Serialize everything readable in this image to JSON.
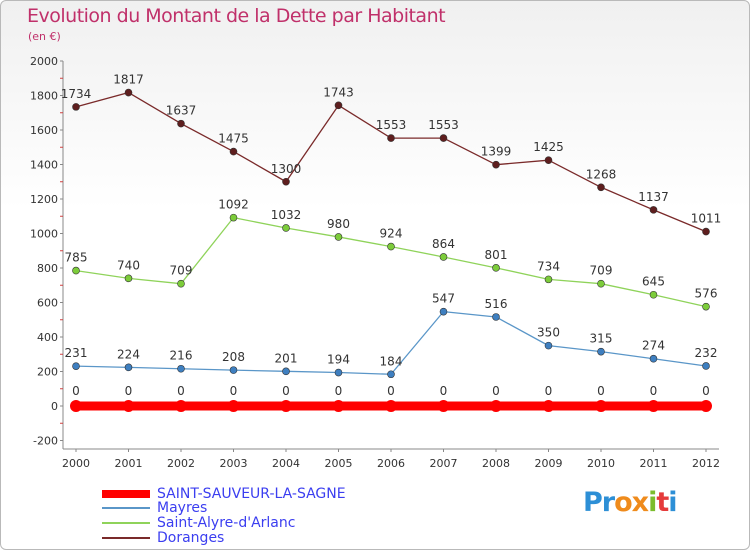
{
  "title": "Evolution du Montant de la Dette par Habitant",
  "subtitle": "(en €)",
  "logo": [
    "Pr",
    "o",
    "x",
    "i",
    "t",
    "i"
  ],
  "chart_data": {
    "type": "line",
    "title": "Evolution du Montant de la Dette par Habitant",
    "subtitle": "(en €)",
    "x": [
      "2000",
      "2001",
      "2002",
      "2003",
      "2004",
      "2005",
      "2006",
      "2007",
      "2008",
      "2009",
      "2010",
      "2011",
      "2012"
    ],
    "ylim": [
      -200,
      2000
    ],
    "yticks": [
      -200,
      0,
      200,
      400,
      600,
      800,
      1000,
      1200,
      1400,
      1600,
      1800,
      2000
    ],
    "grid": false,
    "legend_position": "bottom-left",
    "series": [
      {
        "name": "SAINT-SAUVEUR-LA-SAGNE",
        "color": "#ff0000",
        "values": [
          0,
          0,
          0,
          0,
          0,
          0,
          0,
          0,
          0,
          0,
          0,
          0,
          0
        ]
      },
      {
        "name": "Mayres",
        "color": "#5a96c8",
        "values": [
          231,
          224,
          216,
          208,
          201,
          194,
          184,
          547,
          516,
          350,
          315,
          274,
          232
        ]
      },
      {
        "name": "Saint-Alyre-d'Arlanc",
        "color": "#8fd35a",
        "values": [
          785,
          740,
          709,
          1092,
          1032,
          980,
          924,
          864,
          801,
          734,
          709,
          645,
          576
        ]
      },
      {
        "name": "Doranges",
        "color": "#7a2a2a",
        "values": [
          1734,
          1817,
          1637,
          1475,
          1300,
          1743,
          1553,
          1553,
          1399,
          1425,
          1268,
          1137,
          1011
        ]
      }
    ]
  }
}
